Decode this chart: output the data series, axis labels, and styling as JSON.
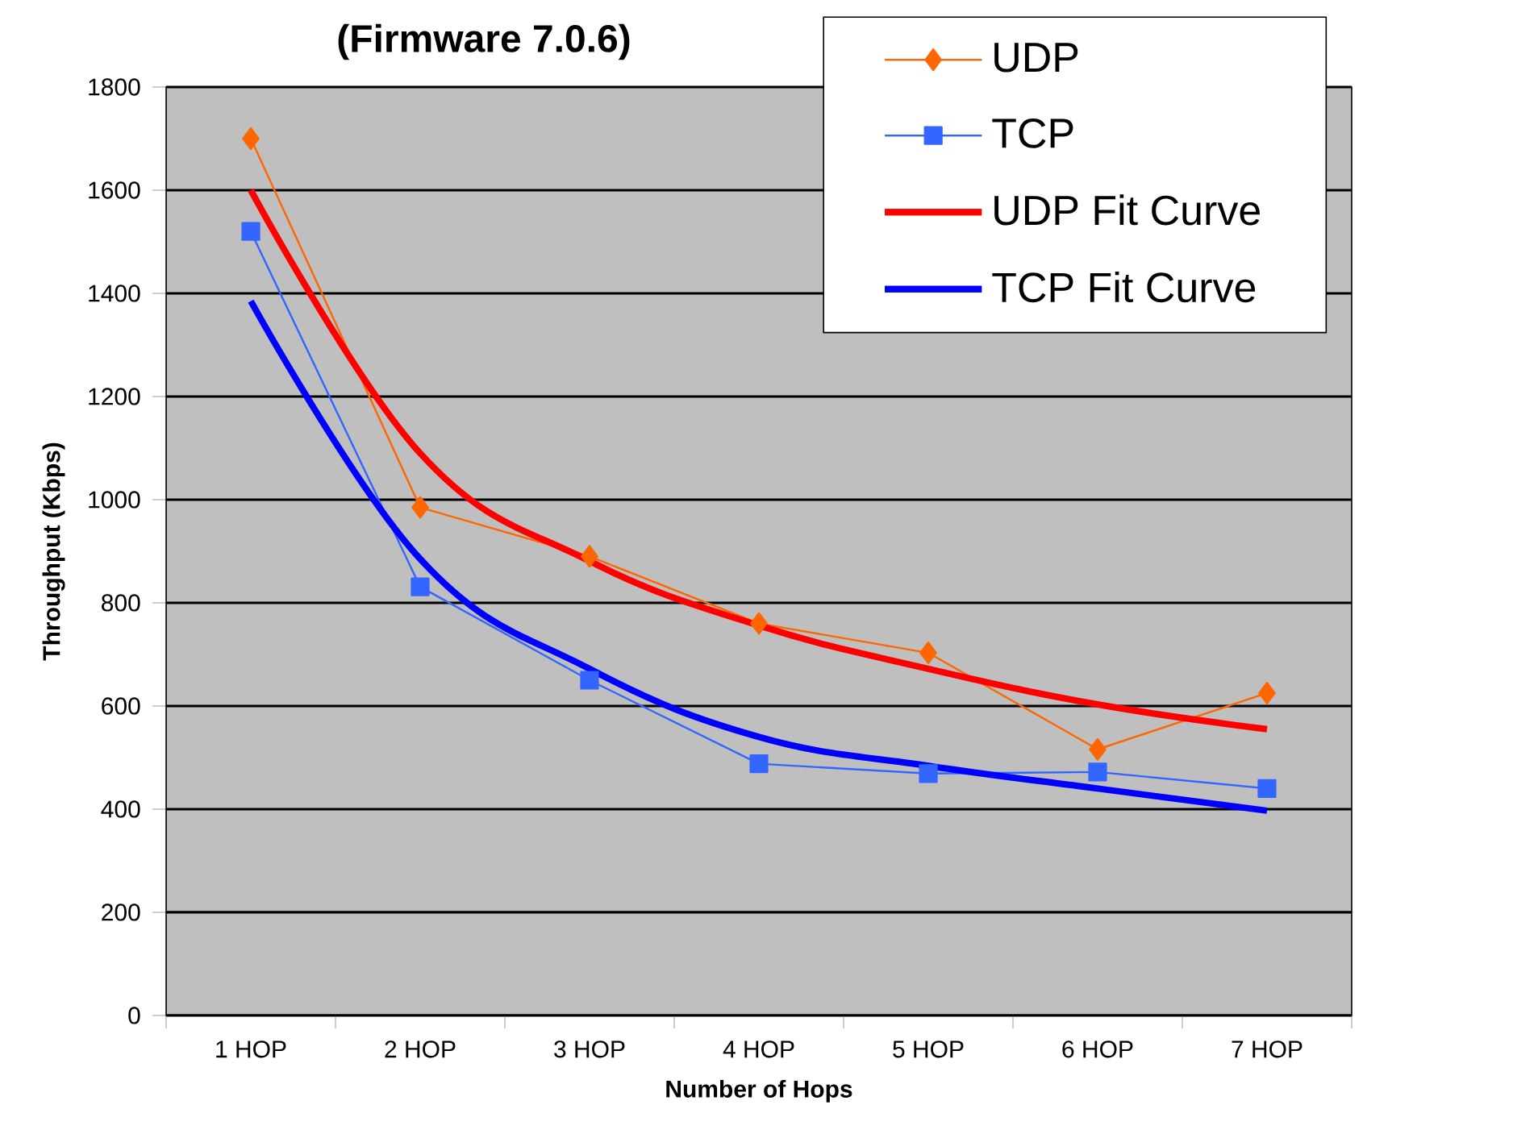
{
  "chart_data": {
    "type": "line",
    "title": "(Firmware 7.0.6)",
    "xlabel": "Number of Hops",
    "ylabel": "Throughput (Kbps)",
    "categories": [
      "1 HOP",
      "2 HOP",
      "3 HOP",
      "4 HOP",
      "5 HOP",
      "6 HOP",
      "7 HOP"
    ],
    "series": [
      {
        "name": "UDP",
        "color": "#ff6600",
        "marker": "diamond",
        "values": [
          1700,
          985,
          890,
          760,
          703,
          516,
          625
        ]
      },
      {
        "name": "TCP",
        "color": "#3366ff",
        "marker": "square",
        "values": [
          1520,
          831,
          650,
          488,
          469,
          472,
          440
        ]
      },
      {
        "name": "UDP Fit Curve",
        "color": "#ff0000",
        "marker": "none",
        "values": [
          1600,
          1090,
          881,
          756,
          672,
          603,
          555
        ]
      },
      {
        "name": "TCP Fit Curve",
        "color": "#0000ff",
        "marker": "none",
        "values": [
          1385,
          885,
          672,
          540,
          484,
          440,
          397
        ]
      }
    ],
    "ylim": [
      0,
      1800
    ],
    "yticks": [
      0,
      200,
      400,
      600,
      800,
      1000,
      1200,
      1400,
      1600,
      1800
    ],
    "grid": "y",
    "legend": "top right"
  }
}
